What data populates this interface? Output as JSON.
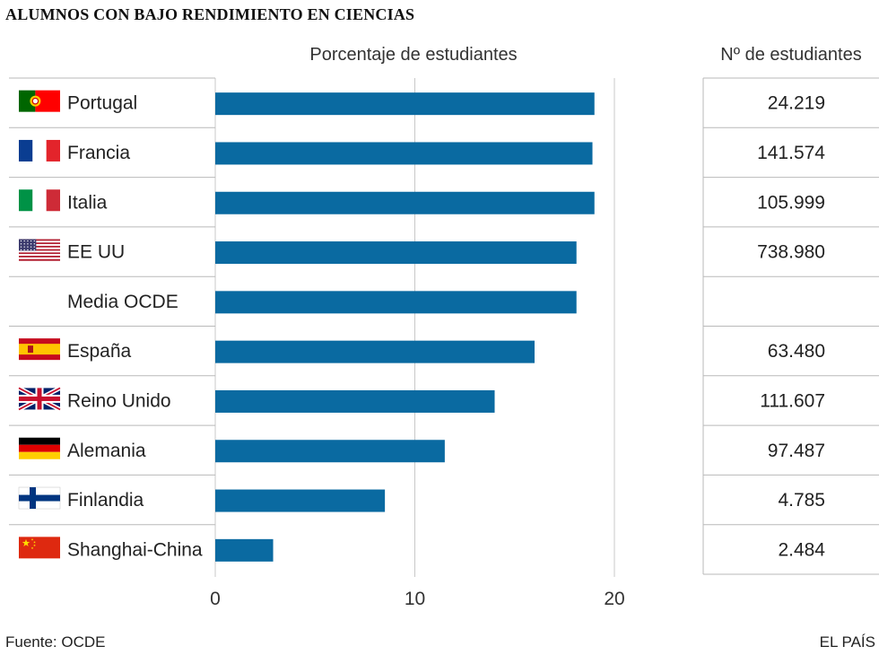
{
  "header": {
    "title": "ALUMNOS CON BAJO RENDIMIENTO EN CIENCIAS",
    "subtitle": "Porcentaje de estudiantes",
    "count_header": "Nº de estudiantes"
  },
  "footer": {
    "source": "Fuente: OCDE",
    "brand": "EL PAÍS"
  },
  "colors": {
    "bar": "#0a6aa1",
    "grid": "#c8c8c8",
    "divider": "#b9b9b9"
  },
  "chart_data": {
    "type": "bar",
    "orientation": "horizontal",
    "categories": [
      "Portugal",
      "Francia",
      "Italia",
      "EE UU",
      "Media OCDE",
      "España",
      "Reino Unido",
      "Alemania",
      "Finlandia",
      "Shanghai-China"
    ],
    "values": [
      19.0,
      18.9,
      19.0,
      18.1,
      18.1,
      16.0,
      14.0,
      11.5,
      8.5,
      2.9
    ],
    "counts": [
      "24.219",
      "141.574",
      "105.999",
      "738.980",
      "",
      "63.480",
      "111.607",
      "97.487",
      "4.785",
      "2.484"
    ],
    "flags": [
      "portugal-flag",
      "france-flag",
      "italy-flag",
      "usa-flag",
      "",
      "spain-flag",
      "uk-flag",
      "germany-flag",
      "finland-flag",
      "china-flag"
    ],
    "xlim": [
      0,
      20
    ],
    "xticks": [
      0,
      10,
      20
    ],
    "xtick_labels": [
      "0",
      "10",
      "20"
    ],
    "grid": true
  }
}
